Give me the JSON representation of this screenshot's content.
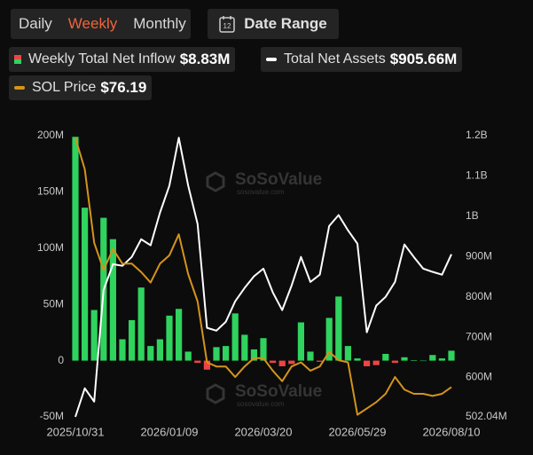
{
  "ui": {
    "tabs": [
      "Daily",
      "Weekly",
      "Monthly"
    ],
    "active_tab": 1,
    "date_range_icon": "12",
    "date_range": "Date Range",
    "watermark": "SoSoValue",
    "watermark_url": "sosovalue.com"
  },
  "chart_data": {
    "type": "bar",
    "categories": [
      "2025/10/31",
      null,
      null,
      null,
      null,
      null,
      null,
      null,
      null,
      null,
      "2026/01/09",
      null,
      null,
      null,
      null,
      null,
      null,
      null,
      null,
      null,
      "2026/03/20",
      null,
      null,
      null,
      null,
      null,
      null,
      null,
      null,
      null,
      "2026/05/29",
      null,
      null,
      null,
      null,
      null,
      null,
      null,
      null,
      null,
      "2026/08/10"
    ],
    "series": [
      {
        "name": "Weekly Total Net Inflow",
        "type": "bar",
        "latest_label": "$8.83M",
        "color": "#2fd35e",
        "negative_color": "#ef4444",
        "legend_colors": [
          "#ef4444",
          "#2fd35e"
        ],
        "values": [
          199,
          136,
          45,
          127,
          108,
          19,
          36,
          65,
          13,
          19,
          40,
          46,
          8,
          -2,
          -8,
          12,
          13,
          42,
          23,
          10,
          20,
          -2,
          -5,
          -3,
          34,
          8,
          -1,
          38,
          57,
          13,
          2,
          -5,
          -4,
          6,
          -2,
          3,
          0.5,
          0,
          5,
          2,
          8.83
        ]
      },
      {
        "name": "Total Net Assets",
        "type": "line",
        "axis": "y2",
        "latest_label": "$905.66M",
        "color": "#ffffff",
        "values": [
          502.04,
          573,
          540,
          817,
          881,
          877,
          899,
          943,
          928,
          1009,
          1076,
          1195,
          1076,
          981,
          723,
          716,
          738,
          789,
          822,
          851,
          870,
          811,
          767,
          828,
          899,
          837,
          855,
          976,
          1003,
          965,
          932,
          712,
          778,
          800,
          837,
          930,
          899,
          870,
          862,
          855,
          905.66
        ]
      },
      {
        "name": "SOL Price",
        "type": "line",
        "axis": "y3",
        "latest_label": "$76.19",
        "color": "#d4941a",
        "values": [
          195,
          180,
          145,
          132,
          142,
          135,
          135,
          131,
          126,
          135,
          139,
          149,
          130,
          117,
          88,
          86,
          86,
          81,
          86,
          90,
          90,
          84,
          79,
          86,
          88,
          84,
          86,
          93,
          89,
          88,
          63,
          66,
          69,
          73,
          81,
          75,
          73,
          73,
          72,
          73,
          76.19
        ]
      }
    ],
    "ylim": [
      -50,
      200
    ],
    "yticks": [
      {
        "value": 200,
        "label": "200M"
      },
      {
        "value": 150,
        "label": "150M"
      },
      {
        "value": 100,
        "label": "100M"
      },
      {
        "value": 50,
        "label": "50M"
      },
      0,
      {
        "value": -50,
        "label": "-50M"
      }
    ],
    "y2lim": [
      502.04,
      1200
    ],
    "y2ticks": [
      {
        "value": 1200,
        "label": "1.2B"
      },
      {
        "value": 1100,
        "label": "1.1B"
      },
      {
        "value": 1000,
        "label": "1B"
      },
      {
        "value": 900,
        "label": "900M"
      },
      {
        "value": 800,
        "label": "800M"
      },
      {
        "value": 700,
        "label": "700M"
      },
      {
        "value": 600,
        "label": "600M"
      },
      {
        "value": 502.04,
        "label": "502.04M"
      }
    ],
    "y3lim": [
      62,
      196
    ]
  }
}
